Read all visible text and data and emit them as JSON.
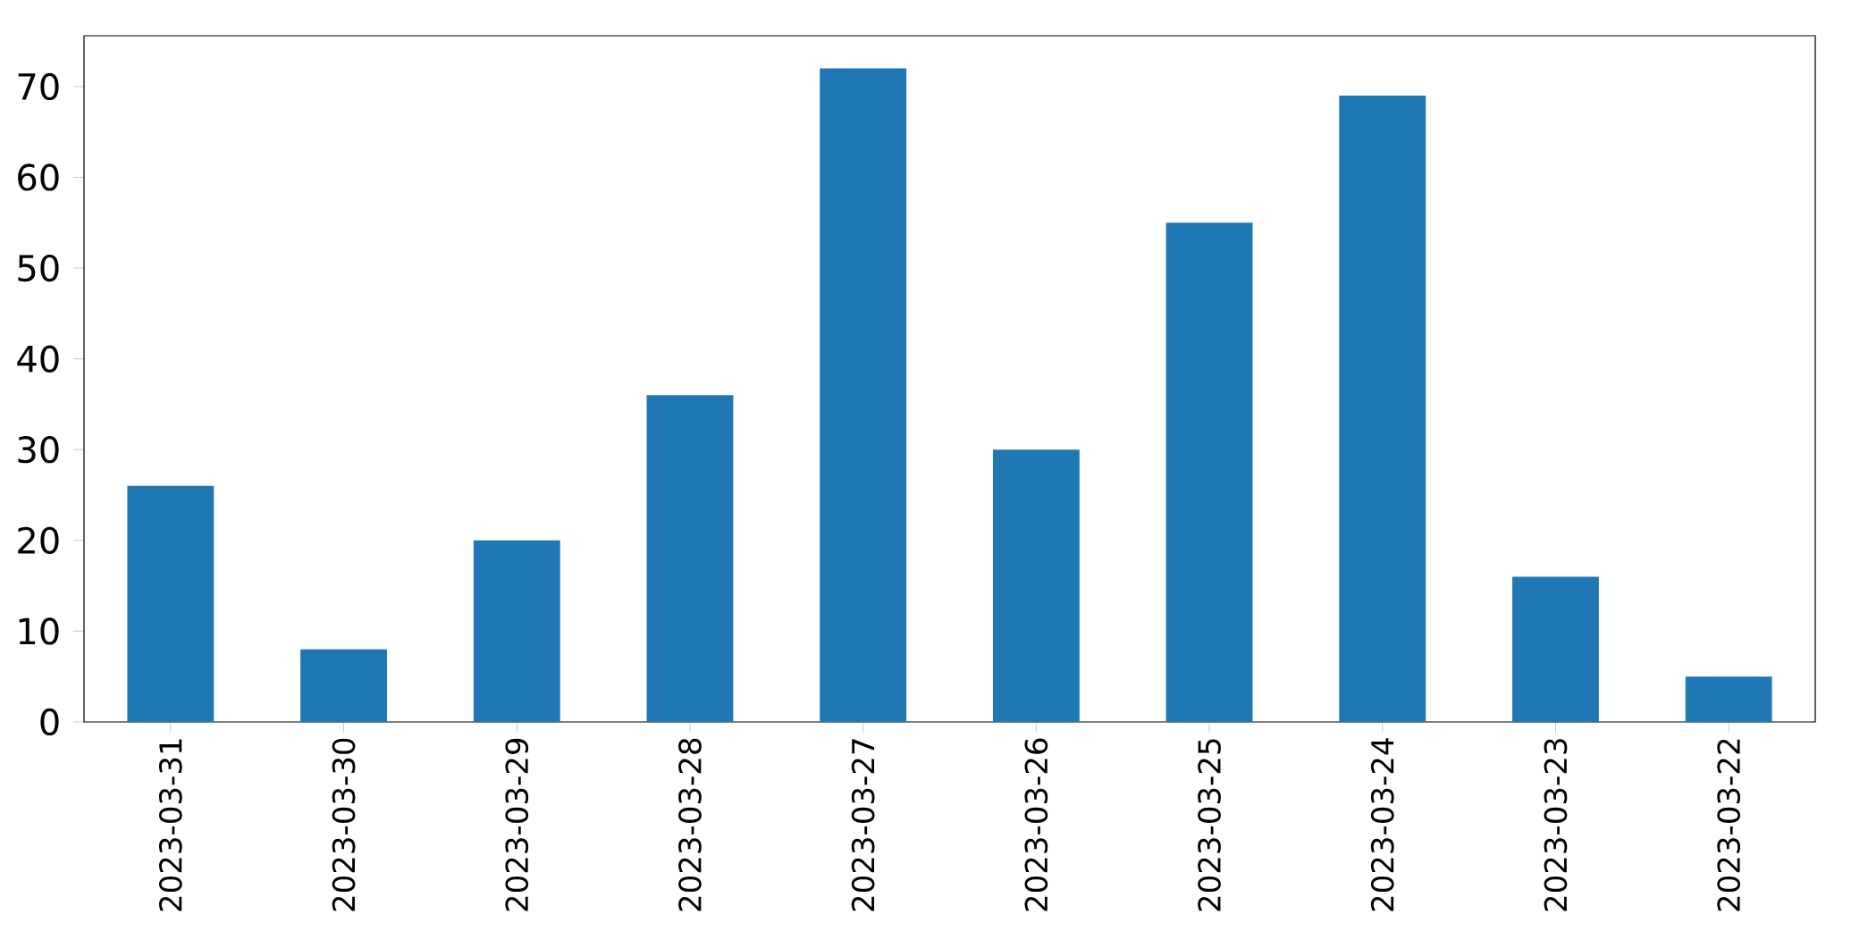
{
  "chart_data": {
    "type": "bar",
    "categories": [
      "2023-03-31",
      "2023-03-30",
      "2023-03-29",
      "2023-03-28",
      "2023-03-27",
      "2023-03-26",
      "2023-03-25",
      "2023-03-24",
      "2023-03-23",
      "2023-03-22"
    ],
    "values": [
      26,
      8,
      20,
      36,
      72,
      30,
      55,
      69,
      16,
      5
    ],
    "color": "#1f77b4",
    "ylim": [
      0,
      75.6
    ],
    "yticks": [
      0,
      10,
      20,
      30,
      40,
      50,
      60,
      70
    ]
  }
}
